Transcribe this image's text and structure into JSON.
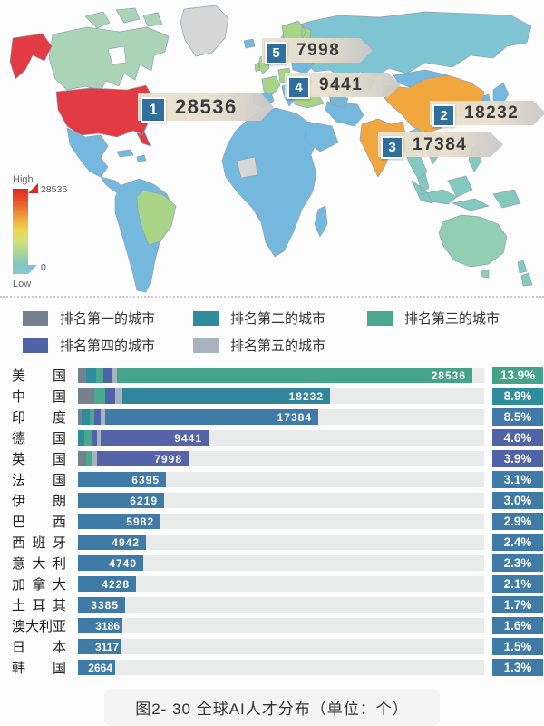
{
  "map": {
    "colorbar": {
      "high_label": "High",
      "low_label": "Low",
      "max": "28536",
      "min": "0"
    },
    "callouts": [
      {
        "rank": "1",
        "value": "28536"
      },
      {
        "rank": "2",
        "value": "18232"
      },
      {
        "rank": "3",
        "value": "17384"
      },
      {
        "rank": "4",
        "value": "9441"
      },
      {
        "rank": "5",
        "value": "7998"
      }
    ],
    "colors": {
      "rank1_country": "#e23b44",
      "rank2_rank3_country": "#f2a73e",
      "default_country": "#74b9dd",
      "russia": "#7fc4d2",
      "secondary_green": "#a9d488",
      "pale_green": "#aad4b5",
      "no_data_gray": "#d6d6d6",
      "callout_badge": "#2e6f9e"
    }
  },
  "legend": {
    "items": [
      {
        "label": "排名第一的城市",
        "color": "#76808f"
      },
      {
        "label": "排名第二的城市",
        "color": "#2f8c9c"
      },
      {
        "label": "排名第三的城市",
        "color": "#4aa98c"
      },
      {
        "label": "排名第四的城市",
        "color": "#4f63a8"
      },
      {
        "label": "排名第五的城市",
        "color": "#a9b3bf"
      }
    ]
  },
  "chart_data": {
    "type": "bar",
    "title": "全球AI人才分布",
    "unit": "个",
    "orientation": "horizontal",
    "xlim": [
      0,
      29400
    ],
    "categories": [
      "美国",
      "中国",
      "印度",
      "德国",
      "英国",
      "法国",
      "伊朗",
      "巴西",
      "西班牙",
      "意大利",
      "加拿大",
      "土耳其",
      "澳大利亚",
      "日本",
      "韩国"
    ],
    "values": [
      28536,
      18232,
      17384,
      9441,
      7998,
      6395,
      6219,
      5982,
      4942,
      4740,
      4228,
      3385,
      3186,
      3117,
      2664
    ],
    "percents": [
      "13.9%",
      "8.9%",
      "8.5%",
      "4.6%",
      "3.9%",
      "3.1%",
      "3.0%",
      "2.9%",
      "2.4%",
      "2.3%",
      "2.1%",
      "1.7%",
      "1.6%",
      "1.5%",
      "1.3%"
    ],
    "bar_colors": [
      "#45a28b",
      "#31869c",
      "#3f7ba6",
      "#5563a8",
      "#5563a8",
      "#3f7ba6",
      "#3f7ba6",
      "#3f7ba6",
      "#3f7ba6",
      "#3f7ba6",
      "#3f7ba6",
      "#3f7ba6",
      "#3f7ba6",
      "#3f7ba6",
      "#3f7ba6"
    ],
    "badge_colors": [
      "#45a28b",
      "#2f8c9c",
      "#4179a8",
      "#5163a8",
      "#5163a8",
      "#3f7ba6",
      "#3f7ba6",
      "#3f7ba6",
      "#3f7ba6",
      "#3f7ba6",
      "#3f7ba6",
      "#3f7ba6",
      "#3f7ba6",
      "#3f7ba6",
      "#3f7ba6"
    ],
    "city_rank_segments": [
      [
        [
          1,
          9
        ],
        [
          2,
          11
        ],
        [
          3,
          8
        ],
        [
          4,
          9
        ],
        [
          5,
          6
        ]
      ],
      [
        [
          1,
          18
        ],
        [
          3,
          12
        ],
        [
          4,
          11
        ],
        [
          5,
          8
        ]
      ],
      [
        [
          1,
          4
        ],
        [
          2,
          9
        ],
        [
          3,
          5
        ],
        [
          4,
          7
        ],
        [
          5,
          5
        ]
      ],
      [
        [
          2,
          7
        ],
        [
          3,
          8
        ],
        [
          4,
          6
        ],
        [
          5,
          4
        ]
      ],
      [
        [
          1,
          9
        ],
        [
          3,
          7
        ],
        [
          5,
          5
        ]
      ],
      [],
      [],
      [],
      [],
      [],
      [],
      [],
      [],
      [],
      []
    ]
  },
  "caption": "图2- 30 全球AI人才分布（单位：个）"
}
